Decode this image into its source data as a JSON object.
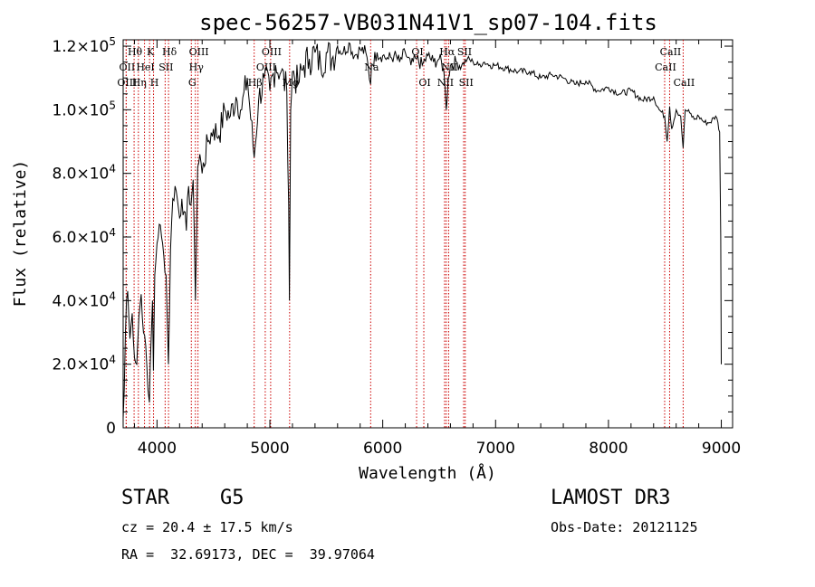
{
  "chart_data": {
    "type": "line",
    "title": "spec-56257-VB031N41V1_sp07-104.fits",
    "xlabel": "Wavelength (Å)",
    "ylabel": "Flux (relative)",
    "xlim": [
      3700,
      9100
    ],
    "ylim": [
      0,
      122000
    ],
    "x_ticks": [
      {
        "value": 4000,
        "label": "4000"
      },
      {
        "value": 5000,
        "label": "5000"
      },
      {
        "value": 6000,
        "label": "6000"
      },
      {
        "value": 7000,
        "label": "7000"
      },
      {
        "value": 8000,
        "label": "8000"
      },
      {
        "value": 9000,
        "label": "9000"
      }
    ],
    "y_ticks": [
      {
        "value": 0,
        "mant": "0",
        "exp": ""
      },
      {
        "value": 20000,
        "mant": "2.0×10",
        "exp": "4"
      },
      {
        "value": 40000,
        "mant": "4.0×10",
        "exp": "4"
      },
      {
        "value": 60000,
        "mant": "6.0×10",
        "exp": "4"
      },
      {
        "value": 80000,
        "mant": "8.0×10",
        "exp": "4"
      },
      {
        "value": 100000,
        "mant": "1.0×10",
        "exp": "5"
      },
      {
        "value": 120000,
        "mant": "1.2×10",
        "exp": "5"
      }
    ],
    "series": [
      {
        "name": "spectrum",
        "x": [
          3700,
          3710,
          3720,
          3730,
          3740,
          3760,
          3780,
          3800,
          3820,
          3840,
          3860,
          3880,
          3900,
          3920,
          3933,
          3940,
          3950,
          3960,
          3968,
          3980,
          4000,
          4020,
          4040,
          4060,
          4080,
          4101,
          4120,
          4140,
          4160,
          4180,
          4200,
          4220,
          4240,
          4260,
          4280,
          4300,
          4320,
          4340,
          4360,
          4380,
          4400,
          4450,
          4500,
          4550,
          4600,
          4650,
          4700,
          4750,
          4800,
          4861,
          4900,
          4950,
          5000,
          5050,
          5100,
          5150,
          5167,
          5173,
          5184,
          5200,
          5250,
          5300,
          5350,
          5400,
          5450,
          5500,
          5550,
          5600,
          5650,
          5700,
          5750,
          5800,
          5850,
          5893,
          5900,
          5950,
          6000,
          6050,
          6100,
          6150,
          6200,
          6250,
          6300,
          6350,
          6400,
          6450,
          6500,
          6540,
          6563,
          6580,
          6600,
          6650,
          6700,
          6750,
          6800,
          6850,
          6900,
          6950,
          7000,
          7100,
          7200,
          7300,
          7400,
          7500,
          7600,
          7700,
          7800,
          7900,
          8000,
          8100,
          8200,
          8300,
          8400,
          8450,
          8498,
          8520,
          8542,
          8560,
          8600,
          8640,
          8662,
          8680,
          8720,
          8760,
          8800,
          8850,
          8900,
          8950,
          8970,
          8985,
          8995,
          9000
        ],
        "y": [
          3000,
          12000,
          30000,
          40000,
          43000,
          28000,
          36000,
          22000,
          20000,
          35000,
          42000,
          30000,
          26000,
          12000,
          8000,
          20000,
          30000,
          40000,
          18000,
          48000,
          58000,
          64000,
          60000,
          54000,
          48000,
          20000,
          56000,
          72000,
          76000,
          72000,
          66000,
          72000,
          68000,
          62000,
          76000,
          70000,
          78000,
          40000,
          82000,
          86000,
          80000,
          90000,
          94000,
          92000,
          100000,
          98000,
          104000,
          100000,
          110000,
          85000,
          103000,
          110000,
          106000,
          114000,
          112000,
          106000,
          70000,
          40000,
          100000,
          112000,
          108000,
          114000,
          116000,
          118000,
          114000,
          118000,
          116000,
          120000,
          118000,
          121000,
          117000,
          119000,
          118000,
          108000,
          114000,
          118000,
          117000,
          116000,
          117000,
          115000,
          118000,
          114000,
          116000,
          114000,
          117000,
          115000,
          116000,
          113000,
          100000,
          110000,
          114000,
          115000,
          114000,
          116000,
          115000,
          114000,
          115000,
          114000,
          114000,
          113000,
          112000,
          112000,
          110000,
          111000,
          110000,
          108000,
          109000,
          106000,
          107000,
          105000,
          106000,
          103000,
          104000,
          100000,
          98000,
          90000,
          101000,
          94000,
          100000,
          98000,
          88000,
          100000,
          99000,
          97000,
          98000,
          96000,
          96000,
          98000,
          96000,
          93000,
          60000,
          20000
        ]
      }
    ],
    "lines": [
      {
        "name": "Hθ",
        "wl": 3797,
        "row": 0
      },
      {
        "name": "OII",
        "wl": 3727,
        "row": 1
      },
      {
        "name": "OIII",
        "wl": 3727,
        "row": 2
      },
      {
        "name": "K",
        "wl": 3934,
        "row": 0
      },
      {
        "name": "H",
        "wl": 3969,
        "row": 2
      },
      {
        "name": "Hη",
        "wl": 3835,
        "row": 2
      },
      {
        "name": "HeI",
        "wl": 3889,
        "row": 1
      },
      {
        "name": "SII",
        "wl": 4072,
        "row": 1
      },
      {
        "name": "Hδ",
        "wl": 4102,
        "row": 0
      },
      {
        "name": "OIII",
        "wl": 4363,
        "row": 0
      },
      {
        "name": "Hγ",
        "wl": 4340,
        "row": 1
      },
      {
        "name": "G",
        "wl": 4304,
        "row": 2
      },
      {
        "name": "Hβ",
        "wl": 4861,
        "row": 2
      },
      {
        "name": "OIII",
        "wl": 5007,
        "row": 0
      },
      {
        "name": "OIII",
        "wl": 4959,
        "row": 1
      },
      {
        "name": "Mg",
        "wl": 5175,
        "row": 2
      },
      {
        "name": "Na",
        "wl": 5893,
        "row": 1
      },
      {
        "name": "OI",
        "wl": 6300,
        "row": 0
      },
      {
        "name": "OI",
        "wl": 6364,
        "row": 2
      },
      {
        "name": "Hα",
        "wl": 6563,
        "row": 0
      },
      {
        "name": "SII",
        "wl": 6717,
        "row": 0
      },
      {
        "name": "NII",
        "wl": 6548,
        "row": 2
      },
      {
        "name": "NII",
        "wl": 6584,
        "row": 1
      },
      {
        "name": "SII",
        "wl": 6731,
        "row": 2
      },
      {
        "name": "CaII",
        "wl": 8542,
        "row": 0
      },
      {
        "name": "CaII",
        "wl": 8498,
        "row": 1
      },
      {
        "name": "CaII",
        "wl": 8662,
        "row": 2
      }
    ]
  },
  "info": {
    "class_label": "STAR",
    "subclass": "G5",
    "survey": "LAMOST DR3",
    "redshift": "cz = 20.4 ± 17.5 km/s",
    "obs_date": "Obs-Date: 20121125",
    "coords": "RA =  32.69173, DEC =  39.97064"
  }
}
